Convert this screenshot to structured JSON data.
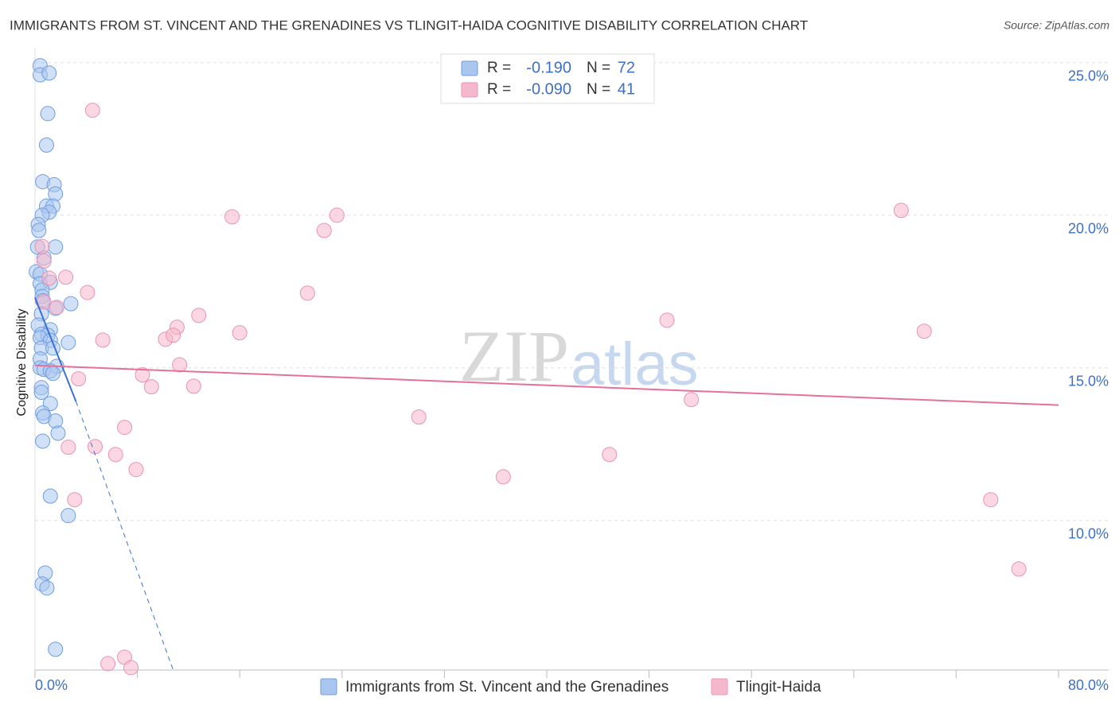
{
  "chart_data": {
    "type": "scatter",
    "title": "IMMIGRANTS FROM ST. VINCENT AND THE GRENADINES VS TLINGIT-HAIDA COGNITIVE DISABILITY CORRELATION CHART",
    "source": "Source: ZipAtlas.com",
    "y_label": "Cognitive Disability",
    "watermark": [
      "ZIP",
      "atlas"
    ],
    "xlim": [
      0,
      80
    ],
    "ylim": [
      5.1,
      25.5
    ],
    "xticks": [
      {
        "value": 0,
        "label": "0.0%"
      },
      {
        "value": 80,
        "label": "80.0%"
      }
    ],
    "xminorticks": [
      8,
      16,
      24,
      32,
      40,
      48,
      56,
      64,
      72
    ],
    "yticks": [
      {
        "value": 10,
        "label": "10.0%"
      },
      {
        "value": 15,
        "label": "15.0%"
      },
      {
        "value": 20,
        "label": "20.0%"
      },
      {
        "value": 25,
        "label": "25.0%"
      }
    ],
    "grid": true,
    "stat_labels": {
      "r": "R =",
      "n": "N ="
    },
    "series": [
      {
        "name": "Immigrants from St. Vincent and the Grenadines",
        "color": "#6f9de0",
        "fill": "#a9c6ef",
        "line_color": "#3a70d4",
        "r": {
          "value": -0.19,
          "label": "-0.190"
        },
        "n": 72,
        "x": [
          0.4,
          0.4,
          1.1,
          1.0,
          0.9,
          0.6,
          1.5,
          1.6,
          0.9,
          1.4,
          1.1,
          0.56,
          0.25,
          0.3,
          0.2,
          1.6,
          0.7,
          0.1,
          0.4,
          0.4,
          1.2,
          0.56,
          0.56,
          0.6,
          2.8,
          1.6,
          0.5,
          0.25,
          1.2,
          0.5,
          1.0,
          0.4,
          1.2,
          2.6,
          0.5,
          1.4,
          0.4,
          1.7,
          0.4,
          0.7,
          1.2,
          1.4,
          0.5,
          0.5,
          1.2,
          0.6,
          0.7,
          1.6,
          1.8,
          0.6,
          1.2,
          2.6,
          0.8,
          0.56,
          0.93,
          1.6
        ],
        "values": [
          24.9,
          24.6,
          24.66,
          23.33,
          22.3,
          21.1,
          21.0,
          20.7,
          20.3,
          20.3,
          20.1,
          20.0,
          19.7,
          19.5,
          18.96,
          18.96,
          18.6,
          18.15,
          18.07,
          17.76,
          17.8,
          17.55,
          17.34,
          17.2,
          17.1,
          16.95,
          16.77,
          16.4,
          16.25,
          16.1,
          16.07,
          15.99,
          15.9,
          15.83,
          15.65,
          15.65,
          15.29,
          15.05,
          15.0,
          14.95,
          14.9,
          14.82,
          14.35,
          14.2,
          13.83,
          13.52,
          13.41,
          13.26,
          12.86,
          12.6,
          10.8,
          10.16,
          8.28,
          7.92,
          7.79,
          5.78
        ],
        "trend": {
          "solid": {
            "x": [
              0,
              3.2
            ],
            "y": [
              17.3,
              13.9
            ]
          },
          "dashed": {
            "x": [
              3.2,
              10.8
            ],
            "y": [
              13.9,
              5.1
            ]
          }
        }
      },
      {
        "name": "Tlingit-Haida",
        "color": "#e994b0",
        "fill": "#f5b7cb",
        "line_color": "#e86f9a",
        "r": {
          "value": -0.09,
          "label": "-0.090"
        },
        "n": 41,
        "x": [
          4.5,
          15.4,
          23.6,
          22.6,
          67.7,
          0.56,
          0.7,
          1.1,
          2.4,
          4.1,
          21.3,
          0.7,
          1.7,
          12.8,
          11.1,
          49.4,
          16.0,
          69.5,
          5.3,
          10.2,
          10.8,
          11.3,
          8.4,
          3.4,
          9.1,
          12.4,
          51.3,
          30.0,
          7.0,
          2.6,
          4.7,
          6.3,
          44.9,
          7.9,
          36.6,
          3.1,
          74.7,
          76.9,
          5.7,
          7.0,
          7.5
        ],
        "values": [
          23.44,
          19.95,
          20.0,
          19.5,
          20.16,
          18.98,
          18.5,
          17.94,
          17.97,
          17.47,
          17.45,
          17.16,
          16.98,
          16.72,
          16.33,
          16.56,
          16.15,
          16.2,
          15.91,
          15.94,
          16.07,
          15.1,
          14.77,
          14.64,
          14.38,
          14.4,
          13.96,
          13.39,
          13.05,
          12.4,
          12.42,
          12.16,
          12.16,
          11.67,
          11.43,
          10.68,
          10.68,
          8.41,
          5.31,
          5.52,
          5.18
        ],
        "trend": {
          "solid": {
            "x": [
              0,
              80
            ],
            "y": [
              15.08,
              13.78
            ]
          }
        }
      }
    ]
  }
}
